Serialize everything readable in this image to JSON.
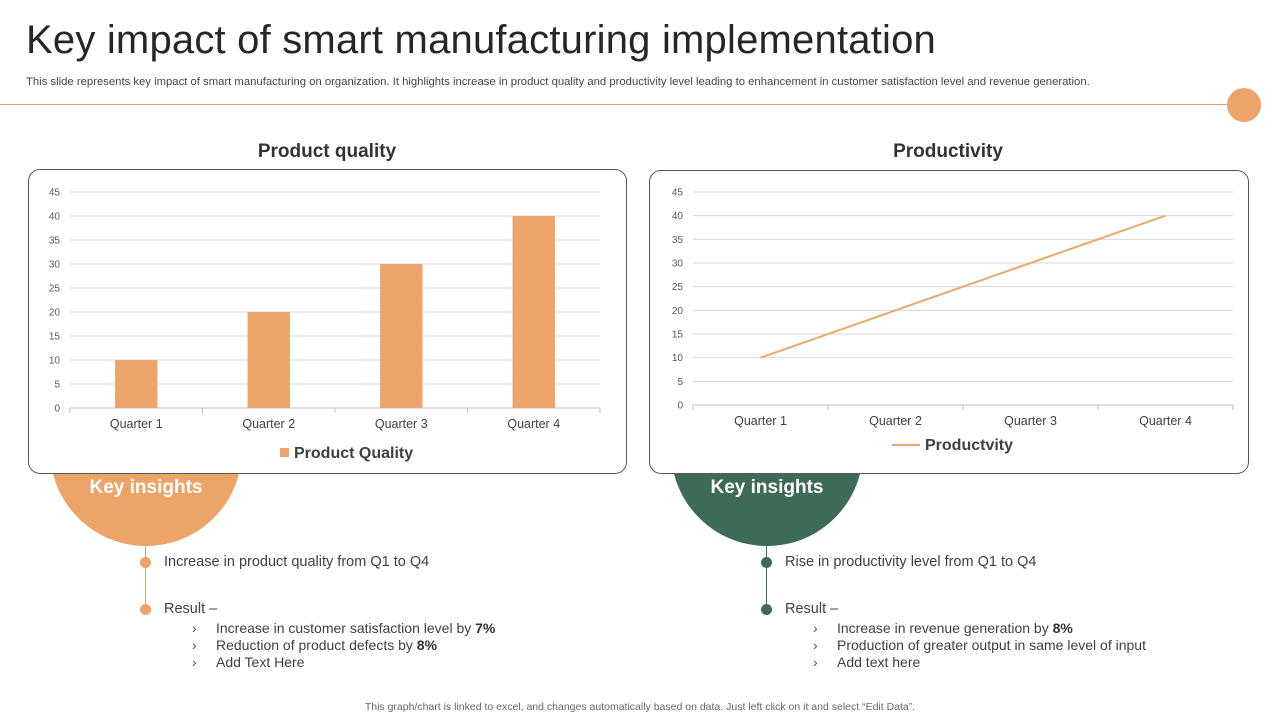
{
  "title": "Key impact of smart manufacturing implementation",
  "subtitle": "This slide represents key impact of smart manufacturing on organization. It highlights increase in product quality and productivity level leading to enhancement in customer satisfaction level and revenue generation.",
  "colors": {
    "orange": "#eca468",
    "green": "#3d6b56",
    "line": "#e8a96e"
  },
  "left_panel": {
    "title": "Product quality",
    "key_insights": "Key insights",
    "insight": "Increase in product quality from Q1 to Q4",
    "result_label": "Result –",
    "sub_items": [
      {
        "text": "Increase in customer satisfaction level by ",
        "bold": "7%"
      },
      {
        "text": "Reduction of product defects by ",
        "bold": "8%"
      },
      {
        "text": "Add Text Here",
        "bold": ""
      }
    ]
  },
  "right_panel": {
    "title": "Productivity",
    "key_insights": "Key insights",
    "insight": "Rise in productivity level from Q1 to Q4",
    "result_label": "Result –",
    "sub_items": [
      {
        "text": "Increase in revenue generation by ",
        "bold": "8%"
      },
      {
        "text": "Production of greater output in same level of input",
        "bold": ""
      },
      {
        "text": "Add text here",
        "bold": ""
      }
    ]
  },
  "chevron": "›",
  "footer": "This graph/chart is linked to excel, and changes automatically based on data. Just left click on it and select “Edit Data”.",
  "chart_data": [
    {
      "type": "bar",
      "categories": [
        "Quarter 1",
        "Quarter 2",
        "Quarter 3",
        "Quarter 4"
      ],
      "series": [
        {
          "name": "Product Quality",
          "values": [
            10,
            20,
            30,
            40
          ]
        }
      ],
      "ylim": [
        0,
        45
      ],
      "yticks": [
        0,
        5,
        10,
        15,
        20,
        25,
        30,
        35,
        40,
        45
      ],
      "legend": "bottom",
      "grid": true
    },
    {
      "type": "line",
      "categories": [
        "Quarter 1",
        "Quarter 2",
        "Quarter 3",
        "Quarter 4"
      ],
      "series": [
        {
          "name": "Productvity",
          "values": [
            10,
            20,
            30,
            40
          ]
        }
      ],
      "ylim": [
        0,
        45
      ],
      "yticks": [
        0,
        5,
        10,
        15,
        20,
        25,
        30,
        35,
        40,
        45
      ],
      "legend": "bottom",
      "grid": true
    }
  ]
}
